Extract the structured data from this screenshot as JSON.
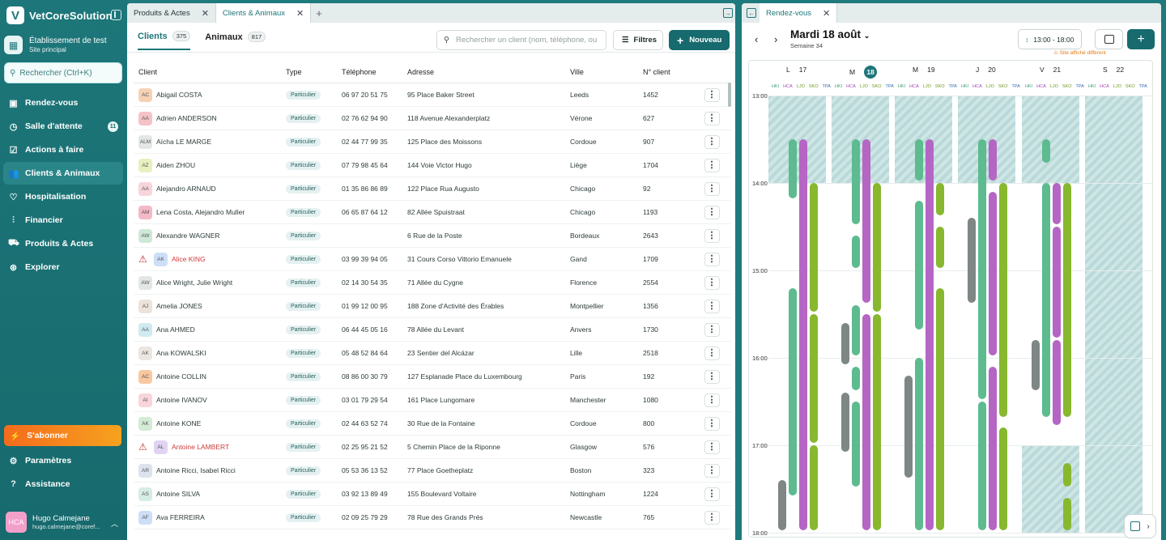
{
  "sidebar": {
    "brand": "VetCoreSolution",
    "establishment": {
      "title": "Établissement de test",
      "subtitle": "Site principal"
    },
    "search_placeholder": "Rechercher (Ctrl+K)",
    "items": [
      {
        "label": "Rendez-vous",
        "icon": "calendar-icon"
      },
      {
        "label": "Salle d'attente",
        "icon": "clock-icon",
        "badge": "11"
      },
      {
        "label": "Actions à faire",
        "icon": "checklist-icon"
      },
      {
        "label": "Clients & Animaux",
        "icon": "users-icon",
        "active": true
      },
      {
        "label": "Hospitalisation",
        "icon": "heart-icon"
      },
      {
        "label": "Financier",
        "icon": "chart-icon"
      },
      {
        "label": "Produits & Actes",
        "icon": "cart-icon"
      },
      {
        "label": "Explorer",
        "icon": "compass-icon"
      }
    ],
    "subscribe": "S'abonner",
    "bottom_items": [
      {
        "label": "Paramètres",
        "icon": "gear-icon"
      },
      {
        "label": "Assistance",
        "icon": "help-icon"
      }
    ],
    "user": {
      "initials": "HCA",
      "name": "Hugo Calmejane",
      "email": "hugo.calmejane@coref..."
    }
  },
  "left_panel": {
    "tabs": [
      {
        "label": "Produits & Actes"
      },
      {
        "label": "Clients & Animaux",
        "selected": true
      }
    ],
    "subtabs": [
      {
        "label": "Clients",
        "count": "375"
      },
      {
        "label": "Animaux",
        "count": "817"
      }
    ],
    "search_placeholder": "Rechercher un client (nom, téléphone, ou",
    "filters": "Filtres",
    "new": "Nouveau",
    "columns": {
      "client": "Client",
      "type": "Type",
      "phone": "Téléphone",
      "address": "Adresse",
      "city": "Ville",
      "number": "N° client"
    },
    "rows": [
      {
        "ini": "AC",
        "bg": "#f6d2b5",
        "name": "Abigail COSTA",
        "type": "Particulier",
        "tel": "06 97 20 51 75",
        "addr": "95 Place Baker Street",
        "city": "Leeds",
        "num": "1452"
      },
      {
        "ini": "AA",
        "bg": "#f5c3c7",
        "name": "Adrien ANDERSON",
        "type": "Particulier",
        "tel": "02 76 62 94 90",
        "addr": "118 Avenue Alexanderplatz",
        "city": "Vérone",
        "num": "627"
      },
      {
        "ini": "ALM",
        "bg": "#e3e6e6",
        "name": "Aïcha LE MARGE",
        "type": "Particulier",
        "tel": "02 44 77 99 35",
        "addr": "125 Place des Moissons",
        "city": "Cordoue",
        "num": "907"
      },
      {
        "ini": "AZ",
        "bg": "#e8f0c0",
        "name": "Aiden ZHOU",
        "type": "Particulier",
        "tel": "07 79 98 45 64",
        "addr": "144 Voie Victor Hugo",
        "city": "Liège",
        "num": "1704"
      },
      {
        "ini": "AA",
        "bg": "#f8d5db",
        "name": "Alejandro ARNAUD",
        "type": "Particulier",
        "tel": "01 35 86 86 89",
        "addr": "122 Place Rua Augusto",
        "city": "Chicago",
        "num": "92"
      },
      {
        "ini": "AM",
        "bg": "#f3b9c6",
        "name": "Lena Costa, Alejandro Muller",
        "type": "Particulier",
        "tel": "06 65 87 64 12",
        "addr": "82 Allée Spuistraat",
        "city": "Chicago",
        "num": "1193"
      },
      {
        "ini": "AW",
        "bg": "#cfe8d8",
        "name": "Alexandre WAGNER",
        "type": "Particulier",
        "tel": "",
        "addr": "6 Rue de la Poste",
        "city": "Bordeaux",
        "num": "2643"
      },
      {
        "ini": "AK",
        "bg": "#cddff7",
        "name": "Alice KING",
        "type": "Particulier",
        "tel": "03 99 39 94 05",
        "addr": "31 Cours Corso Vittorio Emanuele",
        "city": "Gand",
        "num": "1709",
        "alert": true
      },
      {
        "ini": "AW",
        "bg": "#e3e6e6",
        "name": "Alice Wright, Julie Wright",
        "type": "Particulier",
        "tel": "02 14 30 54 35",
        "addr": "71 Allée du Cygne",
        "city": "Florence",
        "num": "2554"
      },
      {
        "ini": "AJ",
        "bg": "#ece3da",
        "name": "Amelia JONES",
        "type": "Particulier",
        "tel": "01 99 12 00 95",
        "addr": "188 Zone d'Activité des Érables",
        "city": "Montpellier",
        "num": "1356"
      },
      {
        "ini": "AA",
        "bg": "#cfeaf0",
        "name": "Ana AHMED",
        "type": "Particulier",
        "tel": "06 44 45 05 16",
        "addr": "78 Allée du Levant",
        "city": "Anvers",
        "num": "1730"
      },
      {
        "ini": "AK",
        "bg": "#ece6e0",
        "name": "Ana KOWALSKI",
        "type": "Particulier",
        "tel": "05 48 52 84 64",
        "addr": "23 Sentier del Alcázar",
        "city": "Lille",
        "num": "2518"
      },
      {
        "ini": "AC",
        "bg": "#f8c89f",
        "name": "Antoine COLLIN",
        "type": "Particulier",
        "tel": "08 86 00 30 79",
        "addr": "127 Esplanade Place du Luxembourg",
        "city": "Paris",
        "num": "192"
      },
      {
        "ini": "AI",
        "bg": "#f8d5db",
        "name": "Antoine IVANOV",
        "type": "Particulier",
        "tel": "03 01 79 29 54",
        "addr": "161 Place Lungomare",
        "city": "Manchester",
        "num": "1080"
      },
      {
        "ini": "AK",
        "bg": "#d4ebd5",
        "name": "Antoine KONE",
        "type": "Particulier",
        "tel": "02 44 63 52 74",
        "addr": "30 Rue de la Fontaine",
        "city": "Cordoue",
        "num": "800"
      },
      {
        "ini": "AL",
        "bg": "#e1d3f2",
        "name": "Antoine LAMBERT",
        "type": "Particulier",
        "tel": "02 25 95 21 52",
        "addr": "5 Chemin Place de la Riponne",
        "city": "Glasgow",
        "num": "576",
        "alert": true
      },
      {
        "ini": "AR",
        "bg": "#dde3ee",
        "name": "Antoine Ricci, Isabel Ricci",
        "type": "Particulier",
        "tel": "05 53 36 13 52",
        "addr": "77 Place Goetheplatz",
        "city": "Boston",
        "num": "323"
      },
      {
        "ini": "AS",
        "bg": "#d6ede6",
        "name": "Antoine SILVA",
        "type": "Particulier",
        "tel": "03 92 13 89 49",
        "addr": "155 Boulevard Voltaire",
        "city": "Nottingham",
        "num": "1224"
      },
      {
        "ini": "AF",
        "bg": "#cddff7",
        "name": "Ava FERREIRA",
        "type": "Particulier",
        "tel": "02 09 25 79 29",
        "addr": "78 Rue des Grands Prés",
        "city": "Newcastle",
        "num": "765"
      }
    ]
  },
  "right_panel": {
    "tab": "Rendez-vous",
    "date": "Mardi 18 août",
    "week": "Semaine 34",
    "time_range": "13:00 - 18:00",
    "site_warning": "Site affiché différent",
    "days": [
      {
        "letter": "L",
        "num": "17"
      },
      {
        "letter": "M",
        "num": "18",
        "today": true
      },
      {
        "letter": "M",
        "num": "19"
      },
      {
        "letter": "J",
        "num": "20"
      },
      {
        "letter": "V",
        "num": "21"
      },
      {
        "letter": "S",
        "num": "22"
      }
    ],
    "resources": [
      "#",
      "HKI",
      "HCA",
      "LJO",
      "SKO",
      "TPA"
    ],
    "hours": [
      "13:00",
      "14:00",
      "15:00",
      "16:00",
      "17:00",
      "18:00"
    ],
    "colors": {
      "green": "#5dbb8f",
      "purple": "#b565c4",
      "lime": "#87b82f",
      "gray": "#7f8686"
    }
  }
}
